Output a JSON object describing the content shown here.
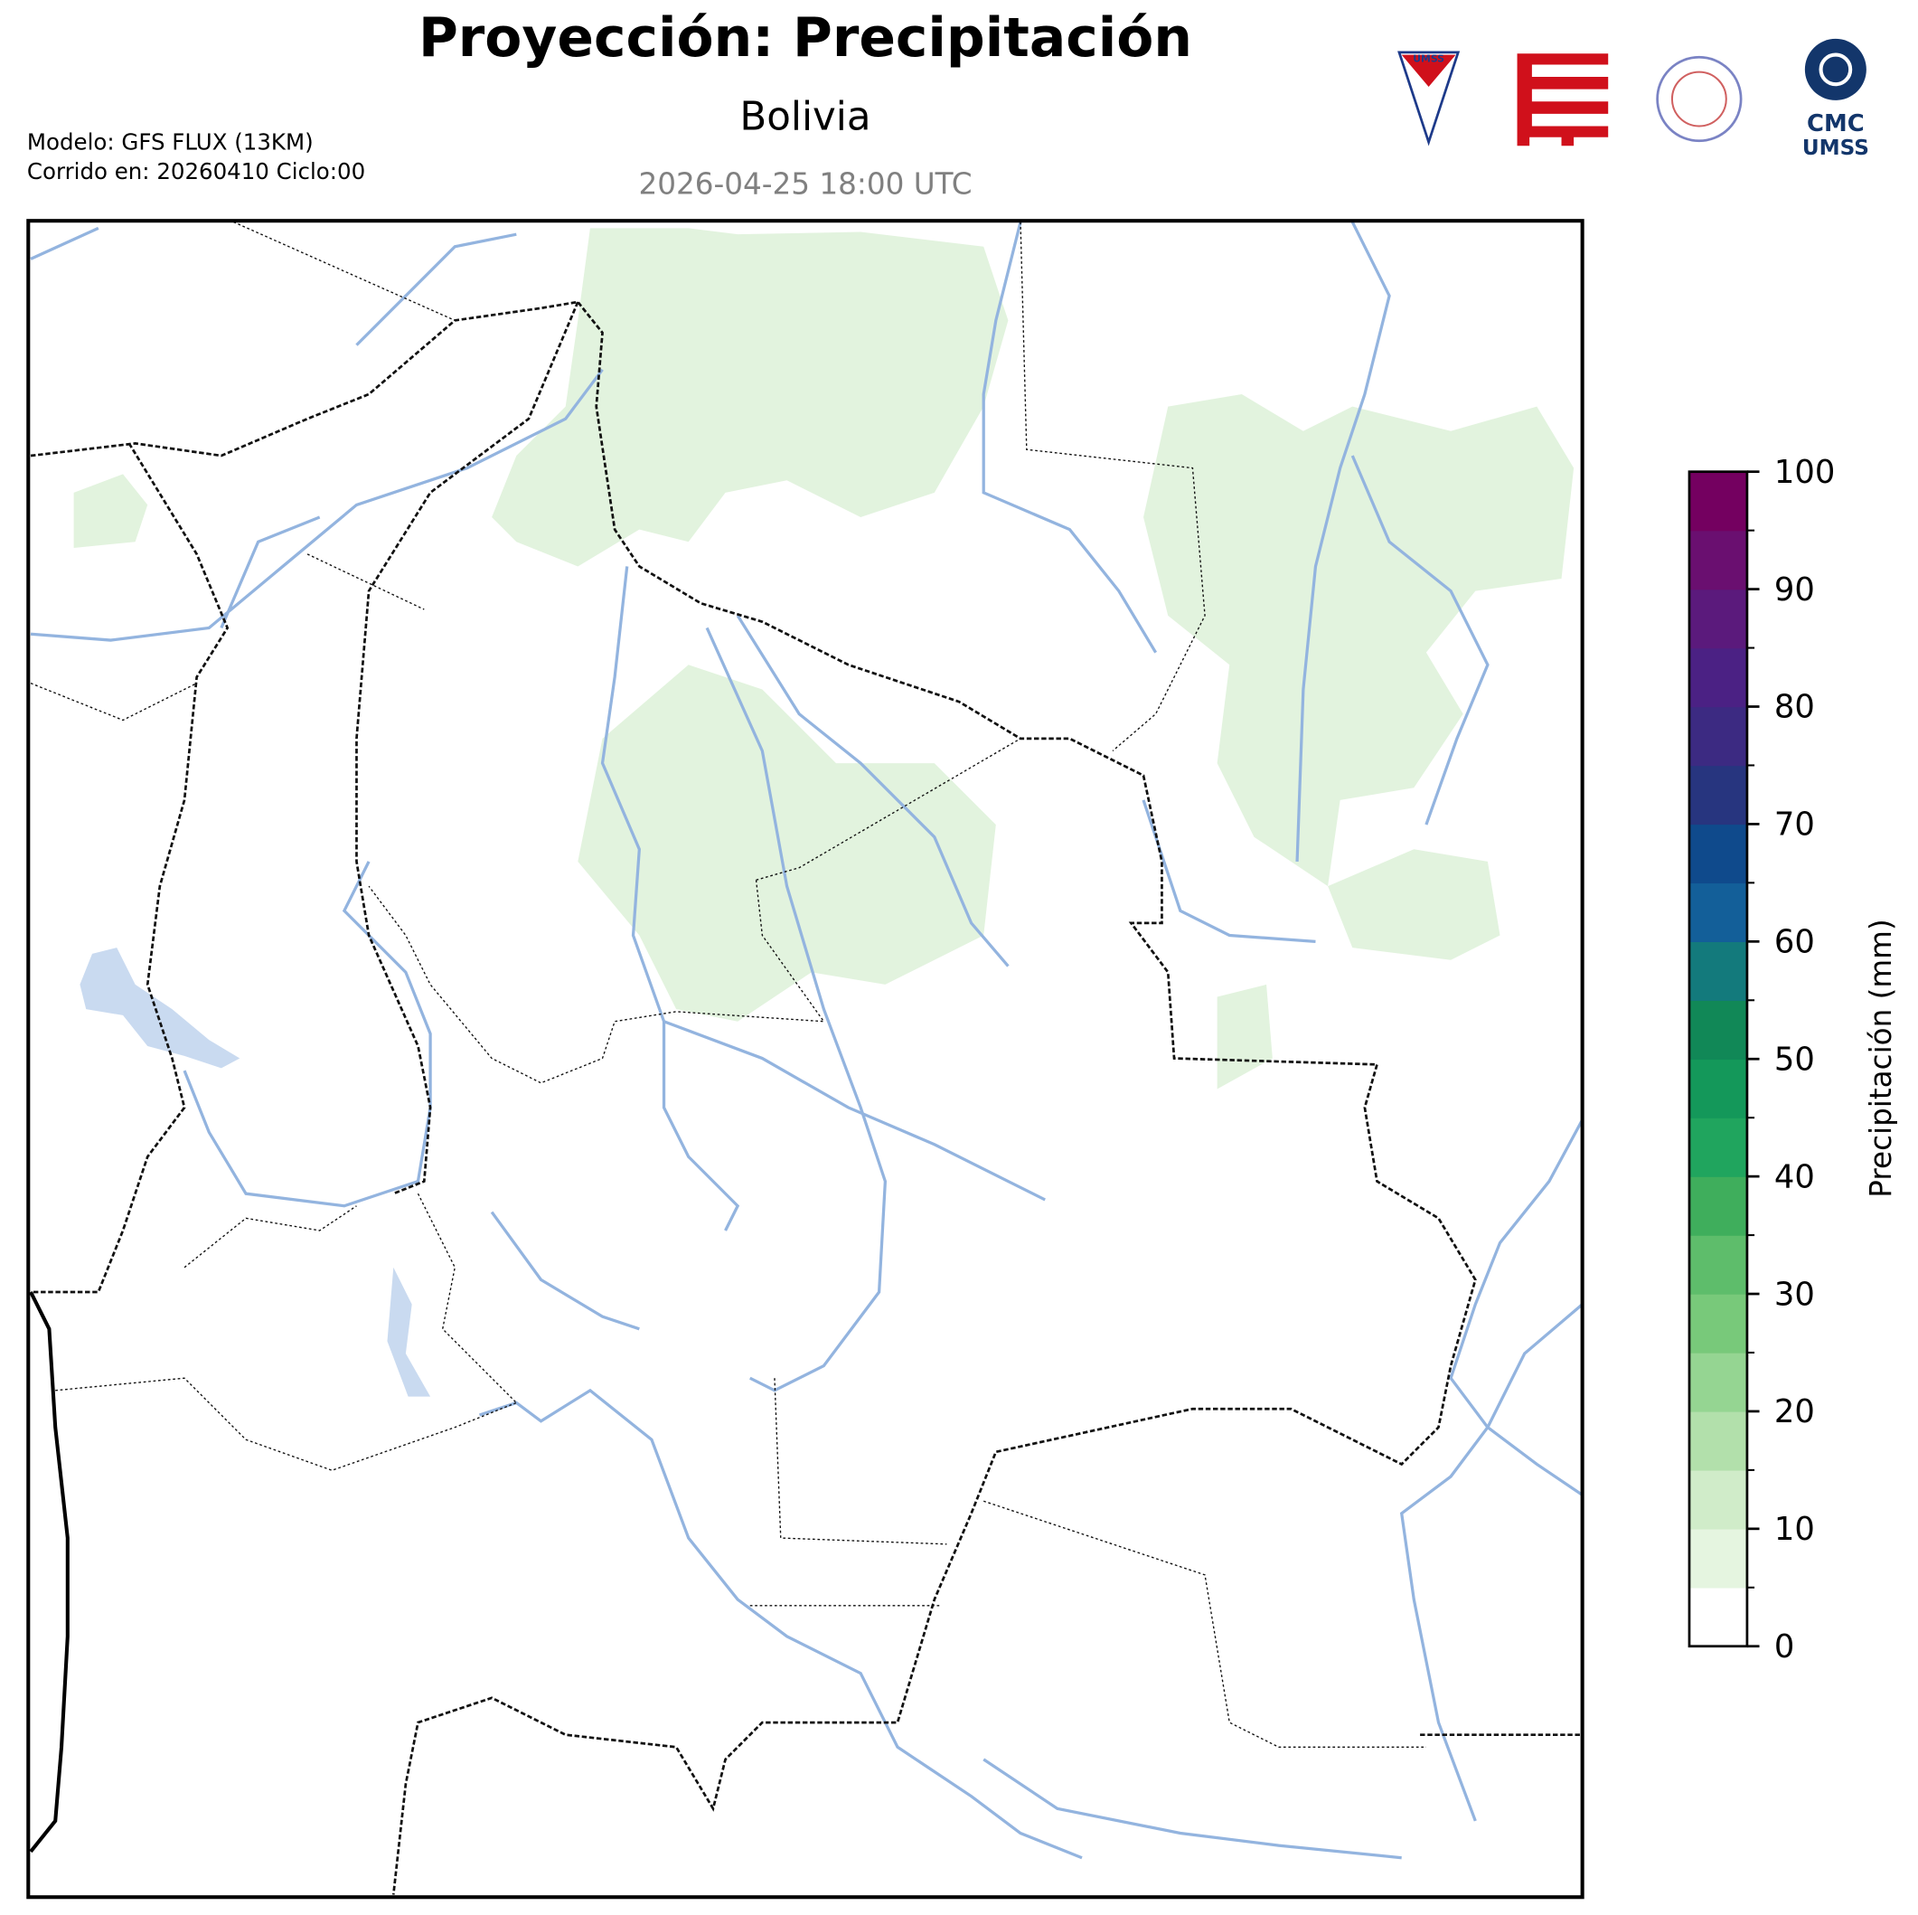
{
  "header": {
    "title": "Proyección: Precipitación",
    "region": "Bolivia",
    "valid_time": "2026-04-25 18:00 UTC",
    "model": "Modelo: GFS FLUX (13KM)",
    "run": "Corrido en: 20260410 Ciclo:00"
  },
  "logos": {
    "umss": "UMSS",
    "cmc_line1": "CMC",
    "cmc_line2": "UMSS"
  },
  "colorbar": {
    "label": "Precipitación (mm)",
    "range": [
      0,
      100
    ],
    "ticks": [
      0,
      10,
      20,
      30,
      40,
      50,
      60,
      70,
      80,
      90,
      100
    ],
    "colors": [
      "#ffffff",
      "#e5f5e0",
      "#d0ecc9",
      "#b2e0ab",
      "#95d592",
      "#78c97a",
      "#5ebd6b",
      "#3fae5c",
      "#20a55e",
      "#14985a",
      "#118857",
      "#137a7c",
      "#135f99",
      "#0f4a8c",
      "#27357f",
      "#3c2a82",
      "#4b2184",
      "#5b1a7c",
      "#6a0f70",
      "#740060"
    ]
  }
}
